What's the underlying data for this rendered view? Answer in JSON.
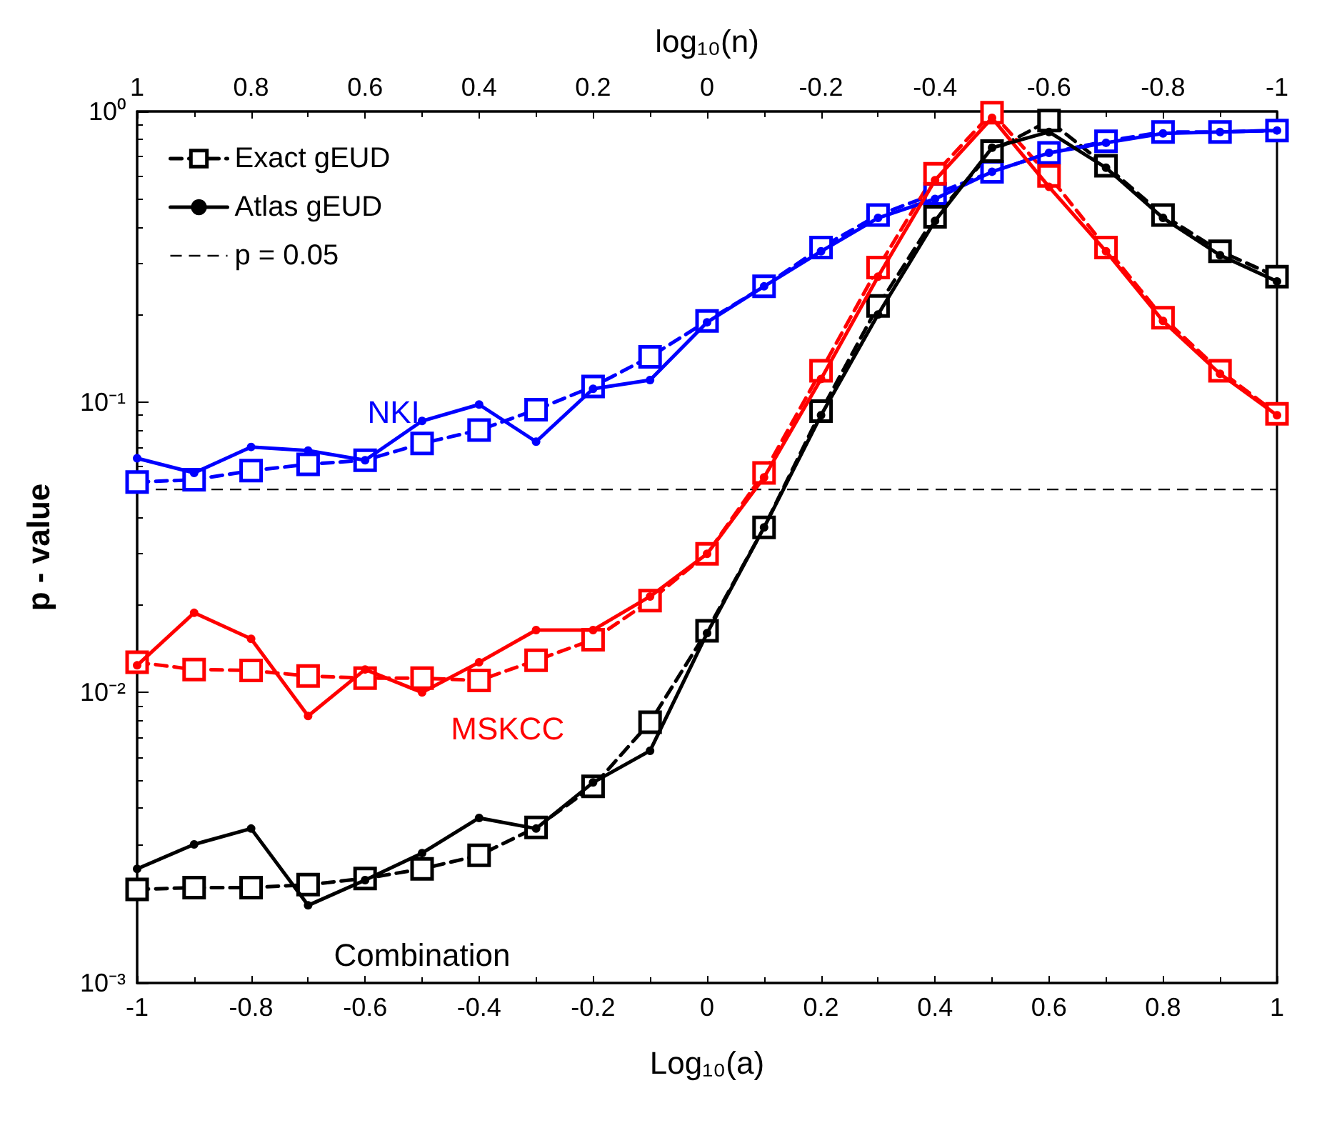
{
  "chart_data": {
    "type": "line",
    "xlabel": "Log₁₀(a)",
    "ylabel": "p - value",
    "x2label": "log₁₀(n)",
    "x": [
      -1,
      -0.9,
      -0.8,
      -0.7,
      -0.6,
      -0.5,
      -0.4,
      -0.3,
      -0.2,
      -0.1,
      0,
      0.1,
      0.2,
      0.3,
      0.4,
      0.5,
      0.6,
      0.7,
      0.8,
      0.9,
      1
    ],
    "series": [
      {
        "color": "#0000ff",
        "marker": "square",
        "line_style": "dashed",
        "values": [
          0.053,
          0.054,
          0.058,
          0.061,
          0.063,
          0.072,
          0.08,
          0.094,
          0.113,
          0.143,
          0.19,
          0.25,
          0.34,
          0.44,
          0.52,
          0.62,
          0.72,
          0.79,
          0.85,
          0.85,
          0.86
        ]
      },
      {
        "color": "#0000ff",
        "marker": "circle",
        "line_style": "solid",
        "values": [
          0.064,
          0.057,
          0.07,
          0.068,
          0.063,
          0.086,
          0.098,
          0.073,
          0.111,
          0.119,
          0.188,
          0.25,
          0.33,
          0.43,
          0.5,
          0.62,
          0.72,
          0.78,
          0.84,
          0.85,
          0.86
        ]
      },
      {
        "color": "#ff0000",
        "marker": "square",
        "line_style": "dashed",
        "values": [
          0.0127,
          0.012,
          0.0119,
          0.0114,
          0.0112,
          0.0112,
          0.011,
          0.0129,
          0.0152,
          0.0207,
          0.03,
          0.057,
          0.128,
          0.29,
          0.61,
          0.99,
          0.6,
          0.34,
          0.195,
          0.128,
          0.091
        ]
      },
      {
        "color": "#ff0000",
        "marker": "circle",
        "line_style": "solid",
        "values": [
          0.0124,
          0.0188,
          0.0153,
          0.0083,
          0.012,
          0.01,
          0.0127,
          0.0164,
          0.0164,
          0.0214,
          0.03,
          0.055,
          0.12,
          0.27,
          0.58,
          0.95,
          0.55,
          0.33,
          0.19,
          0.125,
          0.09
        ]
      },
      {
        "name": "Exact gEUD",
        "color": "#000000",
        "marker": "square",
        "line_style": "dashed",
        "values": [
          0.0021,
          0.00213,
          0.00213,
          0.00218,
          0.00229,
          0.00247,
          0.00275,
          0.00343,
          0.00475,
          0.0079,
          0.0163,
          0.037,
          0.093,
          0.214,
          0.434,
          0.73,
          0.93,
          0.65,
          0.44,
          0.33,
          0.27
        ]
      },
      {
        "name": "Atlas gEUD",
        "color": "#000000",
        "marker": "circle",
        "line_style": "solid",
        "values": [
          0.00247,
          0.003,
          0.0034,
          0.00185,
          0.00226,
          0.0028,
          0.0037,
          0.0034,
          0.0049,
          0.0063,
          0.016,
          0.037,
          0.09,
          0.2,
          0.42,
          0.75,
          0.85,
          0.64,
          0.43,
          0.32,
          0.26
        ]
      }
    ],
    "xlim": [
      -1,
      1
    ],
    "xticks": [
      -1,
      -0.8,
      -0.6,
      -0.4,
      -0.2,
      0,
      0.2,
      0.4,
      0.6,
      0.8,
      1
    ],
    "x2lim": [
      1,
      -1
    ],
    "x2ticks": [
      1,
      0.8,
      0.6,
      0.4,
      0.2,
      0,
      -0.2,
      -0.4,
      -0.6,
      -0.8,
      -1
    ],
    "log": "y",
    "ylim": [
      0.001,
      1
    ],
    "yticks": [
      {
        "value": 0.001,
        "label": "10⁻³"
      },
      {
        "value": 0.01,
        "label": "10⁻²"
      },
      {
        "value": 0.1,
        "label": "10⁻¹"
      },
      {
        "value": 1,
        "label": "10⁰"
      }
    ],
    "ref_lines": [
      {
        "axis": "y",
        "value": 0.05,
        "label": "p = 0.05",
        "color": "#000000",
        "line_style": "dashed"
      }
    ],
    "annotations": [
      "NKI",
      "MSKCC",
      "Combination"
    ],
    "grid": false,
    "legend": "top left"
  }
}
